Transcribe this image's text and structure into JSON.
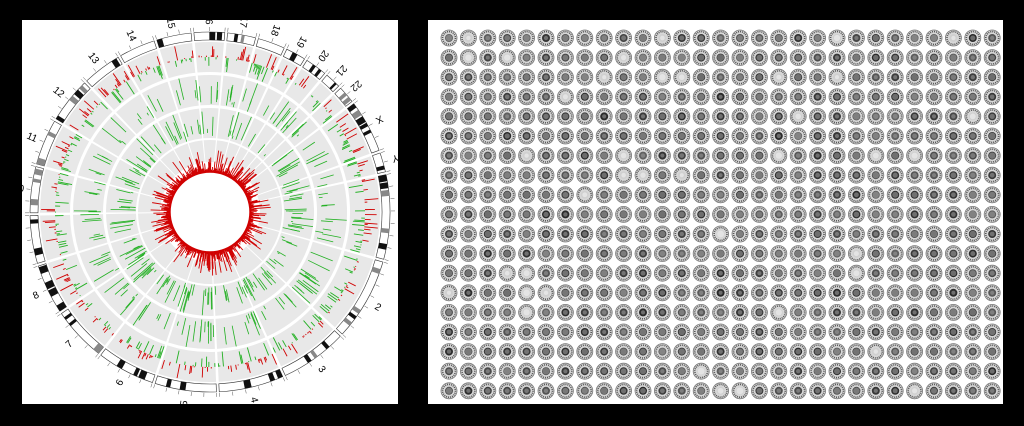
{
  "colors": {
    "background": "#000000",
    "panel": "#ffffff",
    "track_gray": "#e8e8e8",
    "gain": "#d00000",
    "loss": "#22b022",
    "ideogram_dark": "#111111"
  },
  "chart_data": [
    {
      "type": "circos",
      "title": "",
      "chromosomes": [
        "1",
        "2",
        "3",
        "4",
        "5",
        "6",
        "7",
        "8",
        "9",
        "10",
        "11",
        "12",
        "13",
        "14",
        "15",
        "16",
        "17",
        "18",
        "19",
        "20",
        "21",
        "22",
        "X",
        "Y"
      ],
      "tracks": [
        {
          "kind": "gain/loss histogram",
          "colors": [
            "#d00000",
            "#22b022"
          ]
        },
        {
          "kind": "loss bars",
          "colors": [
            "#22b022"
          ]
        },
        {
          "kind": "loss bars",
          "colors": [
            "#22b022"
          ]
        },
        {
          "kind": "inner gain histogram",
          "colors": [
            "#d00000"
          ]
        }
      ]
    },
    {
      "type": "grid",
      "title": "",
      "rows": 19,
      "columns": 29,
      "cell": "circular thumbnail plot"
    }
  ]
}
